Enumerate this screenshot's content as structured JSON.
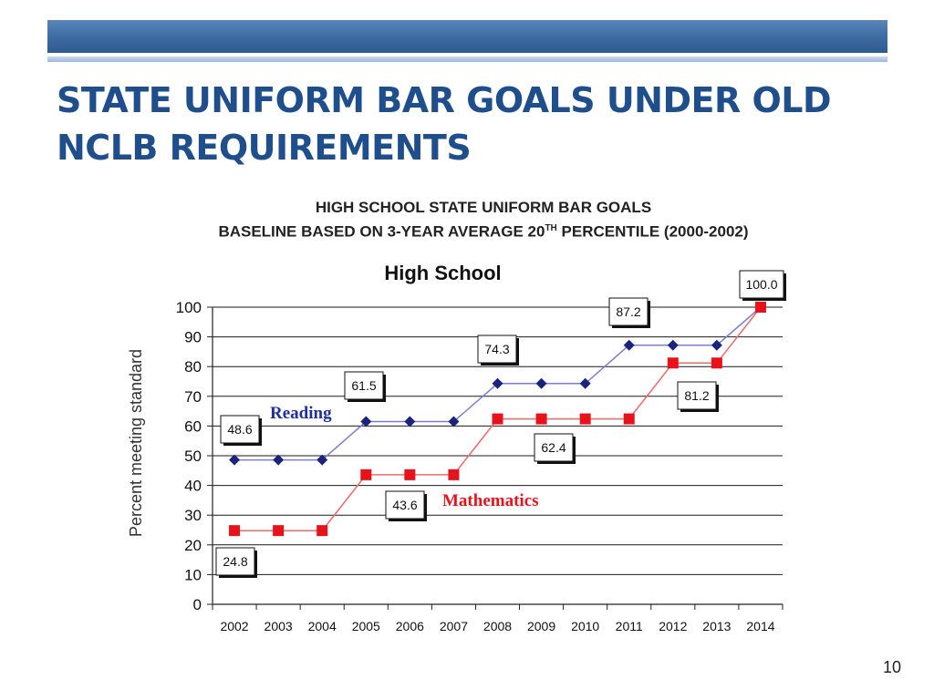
{
  "slide": {
    "title_line1": "STATE UNIFORM BAR GOALS UNDER OLD",
    "title_line2": "NCLB REQUIREMENTS",
    "page_number": "10"
  },
  "chart_data": {
    "type": "line",
    "heading_line1": "HIGH SCHOOL STATE UNIFORM BAR GOALS",
    "heading_line2_pre": "BASELINE BASED ON 3-YEAR AVERAGE 20",
    "heading_line2_sup": "TH",
    "heading_line2_post": " PERCENTILE (2000-2002)",
    "title": "High School",
    "ylabel": "Percent meeting standard",
    "xlabel": "",
    "ylim": [
      0,
      100
    ],
    "yticks": [
      0,
      10,
      20,
      30,
      40,
      50,
      60,
      70,
      80,
      90,
      100
    ],
    "grid": true,
    "x": [
      "2002",
      "2003",
      "2004",
      "2005",
      "2006",
      "2007",
      "2008",
      "2009",
      "2010",
      "2011",
      "2012",
      "2013",
      "2014"
    ],
    "series": [
      {
        "name": "Reading",
        "color": "#1a237e",
        "marker": "diamond",
        "values": [
          48.6,
          48.6,
          48.6,
          61.5,
          61.5,
          61.5,
          74.3,
          74.3,
          74.3,
          87.2,
          87.2,
          87.2,
          100.0
        ]
      },
      {
        "name": "Mathematics",
        "color": "#e8121a",
        "marker": "square",
        "values": [
          24.8,
          24.8,
          24.8,
          43.6,
          43.6,
          43.6,
          62.4,
          62.4,
          62.4,
          62.4,
          81.2,
          81.2,
          100.0
        ]
      }
    ],
    "annotations": [
      {
        "text": "48.6",
        "series": 0,
        "index": 0
      },
      {
        "text": "61.5",
        "series": 0,
        "index": 3
      },
      {
        "text": "74.3",
        "series": 0,
        "index": 6
      },
      {
        "text": "87.2",
        "series": 0,
        "index": 9
      },
      {
        "text": "100.0",
        "series": 0,
        "index": 12
      },
      {
        "text": "24.8",
        "series": 1,
        "index": 0
      },
      {
        "text": "43.6",
        "series": 1,
        "index": 3
      },
      {
        "text": "62.4",
        "series": 1,
        "index": 8
      },
      {
        "text": "81.2",
        "series": 1,
        "index": 11
      }
    ]
  }
}
